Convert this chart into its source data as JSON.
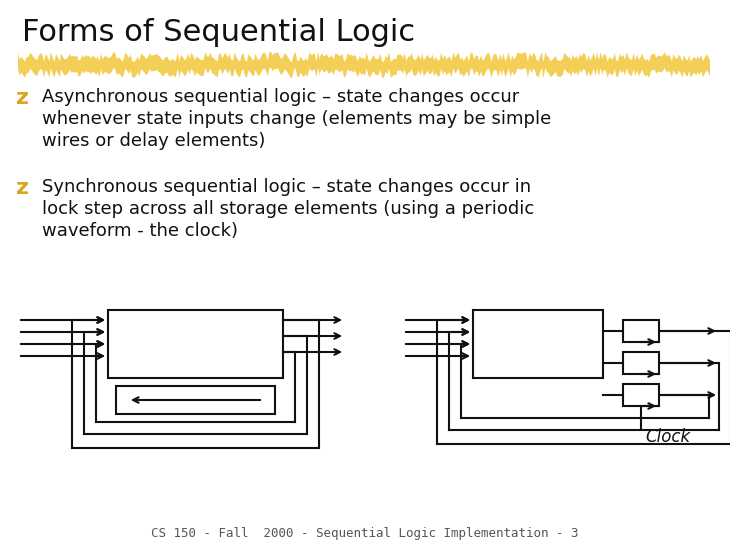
{
  "title": "Forms of Sequential Logic",
  "title_fontsize": 22,
  "title_color": "#111111",
  "background_color": "#ffffff",
  "highlight_color": "#f0c020",
  "bullet_color": "#DAA520",
  "text_color": "#111111",
  "bullet1_lines": [
    "Asynchronous sequential logic – state changes occur",
    "whenever state inputs change (elements may be simple",
    "wires or delay elements)"
  ],
  "bullet2_lines": [
    "Synchronous sequential logic – state changes occur in",
    "lock step across all storage elements (using a periodic",
    "waveform - the clock)"
  ],
  "footer": "CS 150 - Fall  2000 - Sequential Logic Implementation - 3",
  "footer_fontsize": 9,
  "footer_color": "#555555",
  "diagram_line_color": "#111111",
  "clock_label": "Clock",
  "text_fontsize": 13,
  "bullet_fontsize": 16
}
